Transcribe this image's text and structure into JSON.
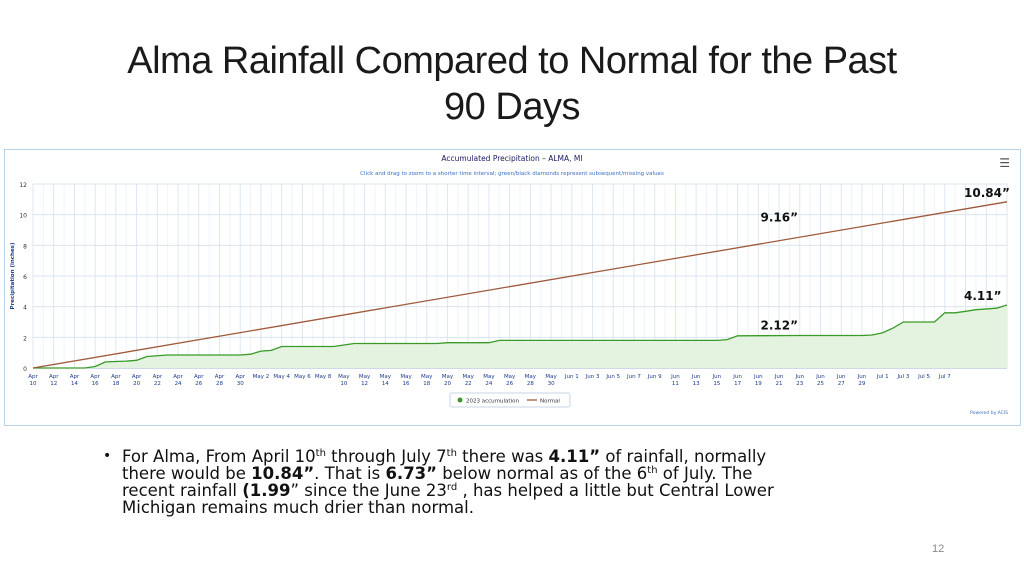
{
  "slide": {
    "title_line1": "Alma Rainfall Compared to Normal for the Past",
    "title_line2": "90 Days",
    "page_number": "12"
  },
  "bullet": {
    "p1": "For Alma, From April 10",
    "sup1": "th",
    "p2": " through July 7",
    "sup2": "th",
    "p3": " there was ",
    "b1": "4.11”",
    "p4": " of rainfall, normally there would be ",
    "b2": "10.84”",
    "p5": ".  That is ",
    "b3": "6.73”",
    "p6": " below normal as of the 6",
    "sup3": "th",
    "p7": " of July. The recent rainfall ",
    "b4": "(1.99",
    "p8": "” since the June 23",
    "sup4": "rd",
    "p9": " , has helped a little but Central Lower Michigan remains much drier than normal."
  },
  "chart_data": {
    "type": "area",
    "title": "Accumulated Precipitation – ALMA, MI",
    "subtitle": "Click and drag to zoom to a shorter time interval; green/black diamonds represent subsequent/missing values",
    "ylabel": "Precipitation (inches)",
    "xlabel": "",
    "ylim": [
      0,
      12
    ],
    "yticks": [
      0,
      2,
      4,
      6,
      8,
      10,
      12
    ],
    "grid": true,
    "legend_position": "bottom-center",
    "x_tick_labels": [
      [
        "Apr",
        "10"
      ],
      [
        "Apr",
        "12"
      ],
      [
        "Apr",
        "14"
      ],
      [
        "Apr",
        "16"
      ],
      [
        "Apr",
        "18"
      ],
      [
        "Apr",
        "20"
      ],
      [
        "Apr",
        "22"
      ],
      [
        "Apr",
        "24"
      ],
      [
        "Apr",
        "26"
      ],
      [
        "Apr",
        "28"
      ],
      [
        "Apr",
        "30"
      ],
      [
        "May 2",
        ""
      ],
      [
        "May 4",
        ""
      ],
      [
        "May 6",
        ""
      ],
      [
        "May 8",
        ""
      ],
      [
        "May",
        "10"
      ],
      [
        "May",
        "12"
      ],
      [
        "May",
        "14"
      ],
      [
        "May",
        "16"
      ],
      [
        "May",
        "18"
      ],
      [
        "May",
        "20"
      ],
      [
        "May",
        "22"
      ],
      [
        "May",
        "24"
      ],
      [
        "May",
        "26"
      ],
      [
        "May",
        "28"
      ],
      [
        "May",
        "30"
      ],
      [
        "Jun 1",
        ""
      ],
      [
        "Jun 3",
        ""
      ],
      [
        "Jun 5",
        ""
      ],
      [
        "Jun 7",
        ""
      ],
      [
        "Jun 9",
        ""
      ],
      [
        "Jun",
        "11"
      ],
      [
        "Jun",
        "13"
      ],
      [
        "Jun",
        "15"
      ],
      [
        "Jun",
        "17"
      ],
      [
        "Jun",
        "19"
      ],
      [
        "Jun",
        "21"
      ],
      [
        "Jun",
        "23"
      ],
      [
        "Jun",
        "25"
      ],
      [
        "Jun",
        "27"
      ],
      [
        "Jun",
        "29"
      ],
      [
        "Jul 1",
        ""
      ],
      [
        "Jul 3",
        ""
      ],
      [
        "Jul 5",
        ""
      ],
      [
        "Jul 7",
        ""
      ]
    ],
    "series": [
      {
        "name": "2023 accumulation",
        "color": "#3a9a28",
        "fill": "#e3f3df",
        "points": [
          [
            0,
            0
          ],
          [
            5,
            0
          ],
          [
            6,
            0.1
          ],
          [
            7,
            0.4
          ],
          [
            9,
            0.45
          ],
          [
            10,
            0.5
          ],
          [
            11,
            0.75
          ],
          [
            13,
            0.85
          ],
          [
            20,
            0.85
          ],
          [
            21,
            0.9
          ],
          [
            22,
            1.1
          ],
          [
            23,
            1.15
          ],
          [
            24,
            1.4
          ],
          [
            29,
            1.4
          ],
          [
            30,
            1.5
          ],
          [
            31,
            1.6
          ],
          [
            39,
            1.6
          ],
          [
            40,
            1.65
          ],
          [
            44,
            1.65
          ],
          [
            45,
            1.8
          ],
          [
            66,
            1.8
          ],
          [
            67,
            1.85
          ],
          [
            68,
            2.1
          ],
          [
            74,
            2.12
          ],
          [
            80,
            2.12
          ],
          [
            81,
            2.15
          ],
          [
            82,
            2.3
          ],
          [
            83,
            2.6
          ],
          [
            84,
            3.0
          ],
          [
            87,
            3.0
          ],
          [
            88,
            3.6
          ],
          [
            89,
            3.6
          ],
          [
            90,
            3.7
          ],
          [
            91,
            3.8
          ],
          [
            93,
            3.9
          ],
          [
            94,
            4.11
          ]
        ]
      },
      {
        "name": "Normal",
        "color": "#a0593a",
        "points": [
          [
            0,
            0
          ],
          [
            94,
            10.84
          ]
        ]
      }
    ],
    "annotations": [
      {
        "text": "10.84”",
        "x": 94,
        "y": 10.84
      },
      {
        "text": "9.16”",
        "x": 76,
        "y": 9.16
      },
      {
        "text": "4.11”",
        "x": 94,
        "y": 4.11
      },
      {
        "text": "2.12”",
        "x": 76,
        "y": 2.12
      }
    ],
    "credit": "Powered by ACIS"
  }
}
